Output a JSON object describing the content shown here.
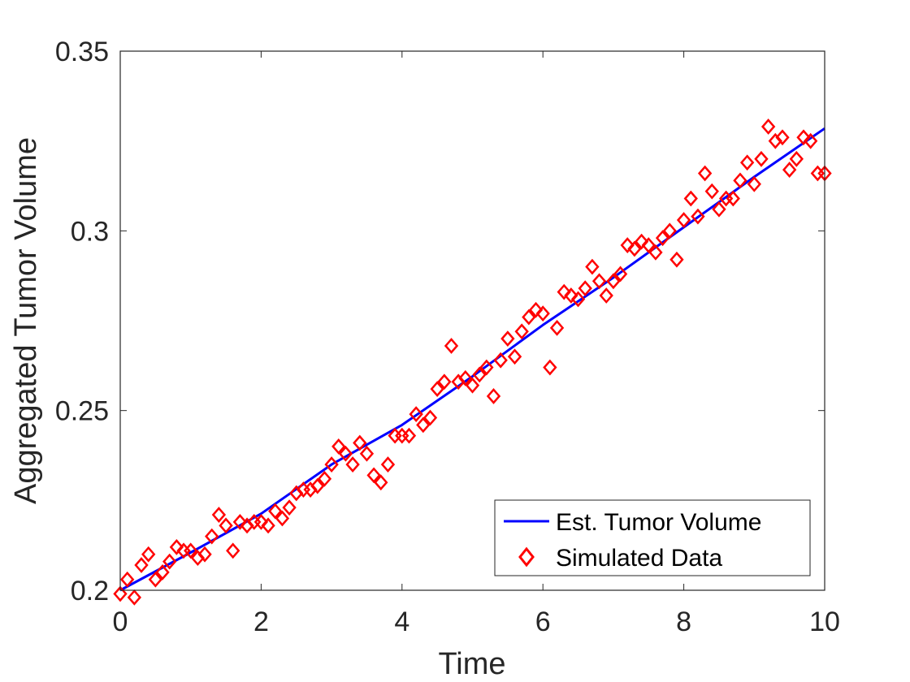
{
  "chart_data": {
    "type": "scatter",
    "title": "",
    "xlabel": "Time",
    "ylabel": "Aggregated Tumor Volume",
    "xlim": [
      0,
      10
    ],
    "ylim": [
      0.2,
      0.35
    ],
    "xticks": [
      "0",
      "2",
      "4",
      "6",
      "8",
      "10"
    ],
    "yticks": [
      "0.2",
      "0.25",
      "0.3",
      "0.35"
    ],
    "grid": false,
    "legend_position": "bottom-right",
    "series": [
      {
        "name": "Est. Tumor Volume",
        "kind": "line",
        "color": "#0000ff",
        "x": [
          0,
          1,
          2,
          3,
          4,
          5,
          6,
          7,
          8,
          9,
          10
        ],
        "y": [
          0.2,
          0.2105,
          0.2213,
          0.235,
          0.246,
          0.2595,
          0.2738,
          0.287,
          0.301,
          0.315,
          0.3285
        ]
      },
      {
        "name": "Simulated Data",
        "kind": "scatter",
        "marker": "diamond",
        "color": "#ff0000",
        "x": [
          0.0,
          0.1,
          0.2,
          0.3,
          0.4,
          0.5,
          0.6,
          0.7,
          0.8,
          0.9,
          1.0,
          1.1,
          1.2,
          1.3,
          1.4,
          1.5,
          1.6,
          1.7,
          1.8,
          1.9,
          2.0,
          2.1,
          2.2,
          2.3,
          2.4,
          2.5,
          2.6,
          2.7,
          2.8,
          2.9,
          3.0,
          3.1,
          3.2,
          3.3,
          3.4,
          3.5,
          3.6,
          3.7,
          3.8,
          3.9,
          4.0,
          4.1,
          4.2,
          4.3,
          4.4,
          4.5,
          4.6,
          4.7,
          4.8,
          4.9,
          5.0,
          5.1,
          5.2,
          5.3,
          5.4,
          5.5,
          5.6,
          5.7,
          5.8,
          5.9,
          6.0,
          6.1,
          6.2,
          6.3,
          6.4,
          6.5,
          6.6,
          6.7,
          6.8,
          6.9,
          7.0,
          7.1,
          7.2,
          7.3,
          7.4,
          7.5,
          7.6,
          7.7,
          7.8,
          7.9,
          8.0,
          8.1,
          8.2,
          8.3,
          8.4,
          8.5,
          8.6,
          8.7,
          8.8,
          8.9,
          9.0,
          9.1,
          9.2,
          9.3,
          9.4,
          9.5,
          9.6,
          9.7,
          9.8,
          9.9,
          10.0
        ],
        "y": [
          0.199,
          0.203,
          0.198,
          0.207,
          0.21,
          0.203,
          0.205,
          0.208,
          0.212,
          0.211,
          0.211,
          0.209,
          0.21,
          0.215,
          0.221,
          0.218,
          0.211,
          0.219,
          0.218,
          0.219,
          0.219,
          0.218,
          0.222,
          0.22,
          0.223,
          0.227,
          0.228,
          0.228,
          0.229,
          0.231,
          0.235,
          0.24,
          0.238,
          0.235,
          0.241,
          0.238,
          0.232,
          0.23,
          0.235,
          0.243,
          0.243,
          0.243,
          0.249,
          0.246,
          0.248,
          0.256,
          0.258,
          0.268,
          0.258,
          0.259,
          0.257,
          0.26,
          0.262,
          0.254,
          0.264,
          0.27,
          0.265,
          0.272,
          0.276,
          0.278,
          0.277,
          0.262,
          0.273,
          0.283,
          0.282,
          0.281,
          0.284,
          0.29,
          0.286,
          0.282,
          0.286,
          0.288,
          0.296,
          0.295,
          0.297,
          0.296,
          0.294,
          0.298,
          0.3,
          0.292,
          0.303,
          0.309,
          0.304,
          0.316,
          0.311,
          0.306,
          0.309,
          0.309,
          0.314,
          0.319,
          0.313,
          0.32,
          0.329,
          0.325,
          0.326,
          0.317,
          0.32,
          0.326,
          0.325,
          0.316,
          0.316
        ]
      }
    ]
  }
}
